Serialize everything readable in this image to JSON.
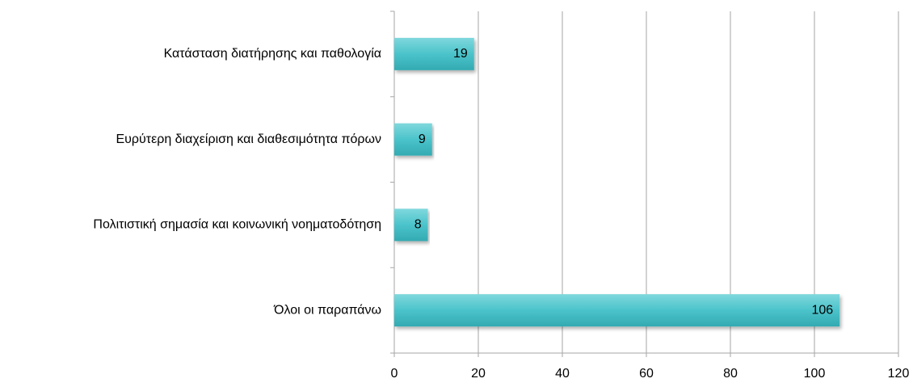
{
  "chart_data": {
    "type": "bar",
    "orientation": "horizontal",
    "categories": [
      "Κατάσταση διατήρησης και παθολογία",
      "Ευρύτερη διαχείριση και διαθεσιμότητα πόρων",
      "Πολιτιστική σημασία και κοινωνική νοηματοδότηση",
      "Όλοι οι παραπάνω"
    ],
    "values": [
      19,
      9,
      8,
      106
    ],
    "color": "#4bc3ca",
    "xlim": [
      0,
      120
    ],
    "xticks": [
      0,
      20,
      40,
      60,
      80,
      100,
      120
    ],
    "grid": true
  }
}
